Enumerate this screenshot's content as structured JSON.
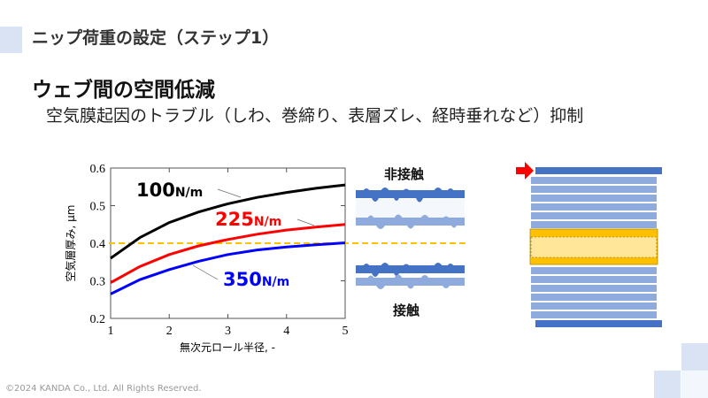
{
  "header": {
    "title": "ニップ荷重の設定（ステップ1）"
  },
  "main": {
    "heading": "ウェブ間の空間低減",
    "subtitle": "空気膜起因のトラブル（しわ、巻締り、表層ズレ、経時垂れなど）抑制"
  },
  "diagram": {
    "non_contact_label": "非接触",
    "contact_label": "接触"
  },
  "footer": {
    "copyright": "©2024 KANDA Co., Ltd. All Rights Reserved."
  },
  "colors": {
    "accent_light": "#dae3f3",
    "web_dark": "#4472c4",
    "web_light": "#8faadc",
    "highlight": "#ffc000",
    "arrow": "#ff0000"
  },
  "chart_data": {
    "type": "line",
    "xlabel": "無次元ロール半径, -",
    "ylabel": "空気層厚み, μm",
    "xlim": [
      1,
      5
    ],
    "ylim": [
      0.2,
      0.6
    ],
    "xticks": [
      "1",
      "2",
      "3",
      "4",
      "5"
    ],
    "yticks": [
      "0.2",
      "0.3",
      "0.4",
      "0.5",
      "0.6"
    ],
    "x": [
      1,
      1.5,
      2,
      2.5,
      3,
      3.5,
      4,
      4.5,
      5
    ],
    "series": [
      {
        "name": "100N/m",
        "value": "100",
        "unit": "N/m",
        "color": "#000000",
        "values": [
          0.36,
          0.415,
          0.455,
          0.483,
          0.505,
          0.522,
          0.535,
          0.546,
          0.555
        ]
      },
      {
        "name": "225N/m",
        "value": "225",
        "unit": "N/m",
        "color": "#ff0000",
        "values": [
          0.295,
          0.338,
          0.37,
          0.393,
          0.41,
          0.424,
          0.435,
          0.443,
          0.45
        ]
      },
      {
        "name": "350N/m",
        "value": "350",
        "unit": "N/m",
        "color": "#0000ff",
        "values": [
          0.265,
          0.303,
          0.33,
          0.352,
          0.37,
          0.382,
          0.39,
          0.396,
          0.401
        ]
      }
    ],
    "reference_line": {
      "y": 0.4,
      "color": "#ffc000",
      "style": "dashed"
    },
    "grid": false
  }
}
